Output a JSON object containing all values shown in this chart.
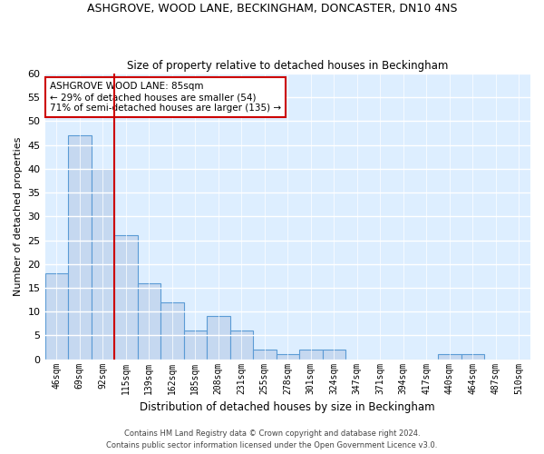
{
  "title1": "ASHGROVE, WOOD LANE, BECKINGHAM, DONCASTER, DN10 4NS",
  "title2": "Size of property relative to detached houses in Beckingham",
  "xlabel": "Distribution of detached houses by size in Beckingham",
  "ylabel": "Number of detached properties",
  "bar_labels": [
    "46sqm",
    "69sqm",
    "92sqm",
    "115sqm",
    "139sqm",
    "162sqm",
    "185sqm",
    "208sqm",
    "231sqm",
    "255sqm",
    "278sqm",
    "301sqm",
    "324sqm",
    "347sqm",
    "371sqm",
    "394sqm",
    "417sqm",
    "440sqm",
    "464sqm",
    "487sqm",
    "510sqm"
  ],
  "bar_values": [
    18,
    47,
    40,
    26,
    16,
    12,
    6,
    9,
    6,
    2,
    1,
    2,
    2,
    0,
    0,
    0,
    0,
    1,
    1,
    0,
    0
  ],
  "bar_color": "#c5d8f0",
  "bar_edge_color": "#5b9bd5",
  "vline_index": 2,
  "vline_color": "#cc0000",
  "ylim": [
    0,
    60
  ],
  "yticks": [
    0,
    5,
    10,
    15,
    20,
    25,
    30,
    35,
    40,
    45,
    50,
    55,
    60
  ],
  "annotation_text": "ASHGROVE WOOD LANE: 85sqm\n← 29% of detached houses are smaller (54)\n71% of semi-detached houses are larger (135) →",
  "annotation_box_color": "#ffffff",
  "annotation_box_edge": "#cc0000",
  "bg_color": "#ddeeff",
  "grid_color": "#ffffff",
  "footer1": "Contains HM Land Registry data © Crown copyright and database right 2024.",
  "footer2": "Contains public sector information licensed under the Open Government Licence v3.0."
}
